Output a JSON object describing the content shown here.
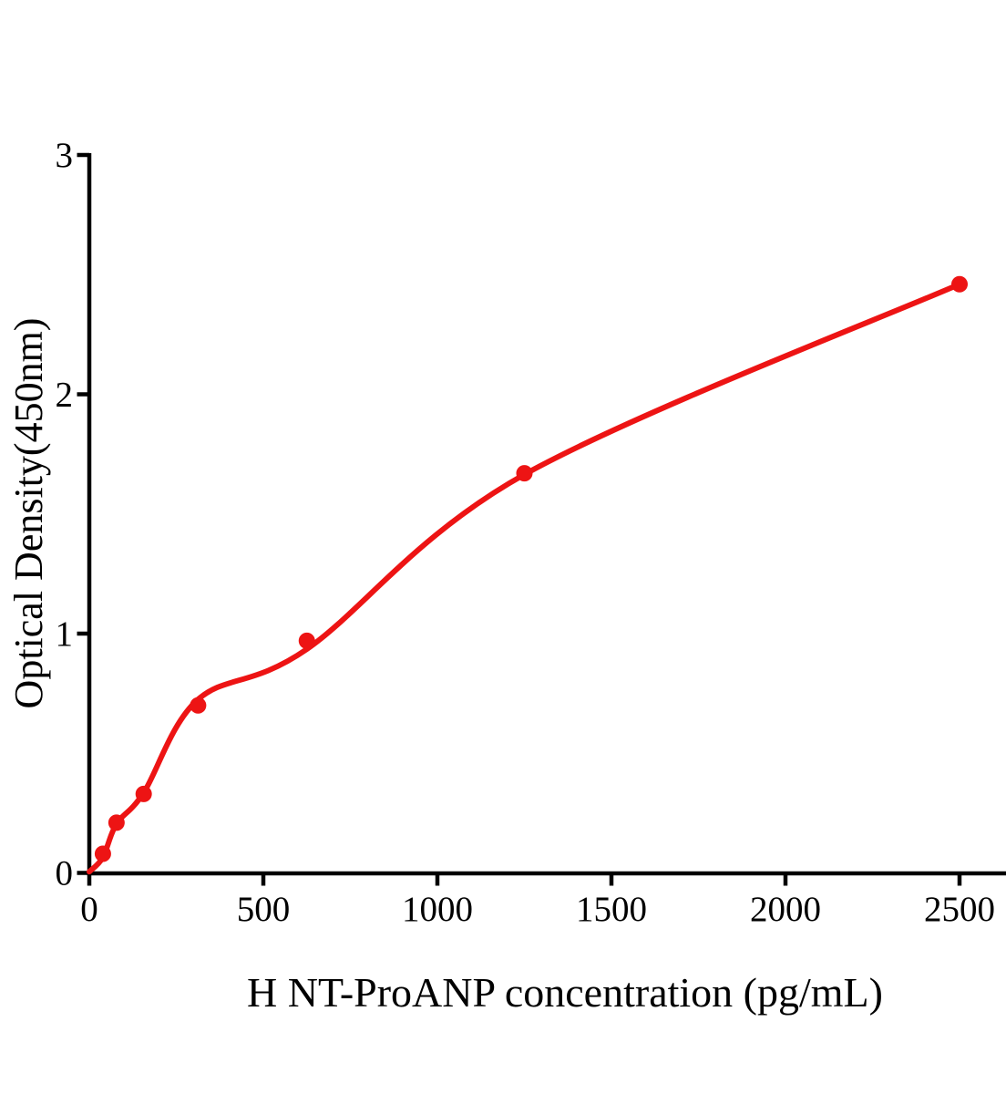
{
  "figure": {
    "background_color": "#ffffff"
  },
  "chart_data": {
    "type": "scatter",
    "title": "",
    "xlabel": "H NT-ProANP concentration (pg/mL)",
    "ylabel": "Optical Density(450nm)",
    "xlim": [
      0,
      2500
    ],
    "ylim": [
      0,
      3
    ],
    "x_ticks": [
      0,
      500,
      1000,
      1500,
      2000,
      2500
    ],
    "y_ticks": [
      0,
      1,
      2,
      3
    ],
    "grid": false,
    "legend": "none",
    "axis_color": "#000000",
    "marker_color": "#ed1414",
    "line_color": "#ed1414",
    "points": [
      {
        "x": 39.06,
        "y": 0.08
      },
      {
        "x": 78.13,
        "y": 0.21
      },
      {
        "x": 156.25,
        "y": 0.33
      },
      {
        "x": 312.5,
        "y": 0.7
      },
      {
        "x": 625,
        "y": 0.97
      },
      {
        "x": 1250,
        "y": 1.67
      },
      {
        "x": 2500,
        "y": 2.46
      }
    ],
    "fit_curve": [
      {
        "x": 0,
        "y": 0.005
      },
      {
        "x": 39.06,
        "y": 0.065
      },
      {
        "x": 78.13,
        "y": 0.205
      },
      {
        "x": 156.25,
        "y": 0.335
      },
      {
        "x": 312.5,
        "y": 0.725
      },
      {
        "x": 625,
        "y": 0.935
      },
      {
        "x": 1250,
        "y": 1.665
      },
      {
        "x": 2500,
        "y": 2.46
      }
    ]
  }
}
